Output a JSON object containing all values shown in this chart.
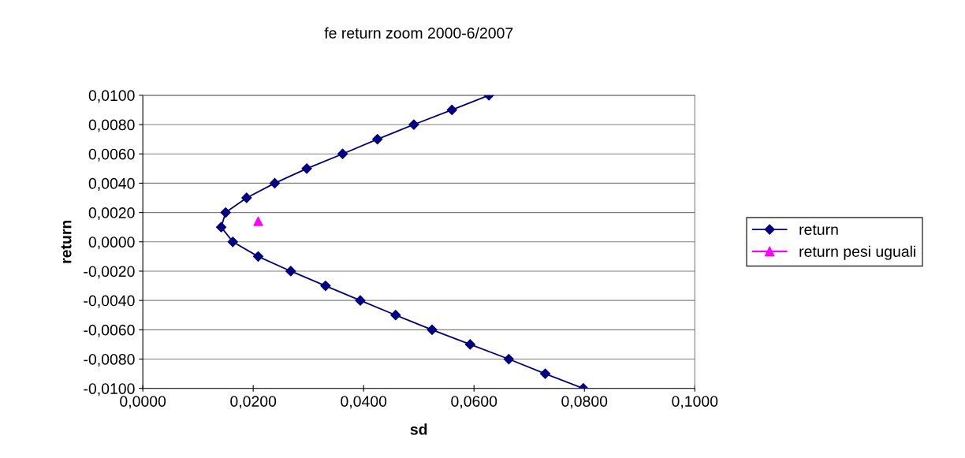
{
  "chart_data": {
    "type": "line",
    "title": "fe return zoom 2000-6/2007",
    "xlabel": "sd",
    "ylabel": "return",
    "xlim": [
      0,
      0.1
    ],
    "ylim": [
      -0.01,
      0.01
    ],
    "xticks": [
      {
        "value": 0,
        "label": "0,0000"
      },
      {
        "value": 0.02,
        "label": "0,0200"
      },
      {
        "value": 0.04,
        "label": "0,0400"
      },
      {
        "value": 0.06,
        "label": "0,0600"
      },
      {
        "value": 0.08,
        "label": "0,0800"
      },
      {
        "value": 0.1,
        "label": "0,1000"
      }
    ],
    "yticks": [
      {
        "value": -0.01,
        "label": "-0,0100"
      },
      {
        "value": -0.008,
        "label": "-0,0080"
      },
      {
        "value": -0.006,
        "label": "-0,0060"
      },
      {
        "value": -0.004,
        "label": "-0,0040"
      },
      {
        "value": -0.002,
        "label": "-0,0020"
      },
      {
        "value": 0,
        "label": "0,0000"
      },
      {
        "value": 0.002,
        "label": "0,0020"
      },
      {
        "value": 0.004,
        "label": "0,0040"
      },
      {
        "value": 0.006,
        "label": "0,0060"
      },
      {
        "value": 0.008,
        "label": "0,0080"
      },
      {
        "value": 0.01,
        "label": "0,0100"
      }
    ],
    "grid": "y",
    "legend": "right",
    "series": [
      {
        "name": "return",
        "color": "#000080",
        "marker": "diamond",
        "line_style": "solid",
        "x": [
          0.0627,
          0.056,
          0.0491,
          0.0425,
          0.0362,
          0.0297,
          0.0239,
          0.0188,
          0.015,
          0.0142,
          0.0163,
          0.0209,
          0.0268,
          0.0331,
          0.0394,
          0.0458,
          0.0524,
          0.0593,
          0.0663,
          0.0729,
          0.0798
        ],
        "values": [
          0.01,
          0.009,
          0.008,
          0.007,
          0.006,
          0.005,
          0.004,
          0.003,
          0.002,
          0.001,
          0,
          -0.001,
          -0.002,
          -0.003,
          -0.004,
          -0.005,
          -0.006,
          -0.007,
          -0.008,
          -0.009,
          -0.01
        ]
      },
      {
        "name": "return pesi uguali",
        "type": "scatter",
        "color": "#ff00ff",
        "marker": "triangle",
        "x": [
          0.0209
        ],
        "values": [
          0.0014
        ]
      }
    ]
  }
}
